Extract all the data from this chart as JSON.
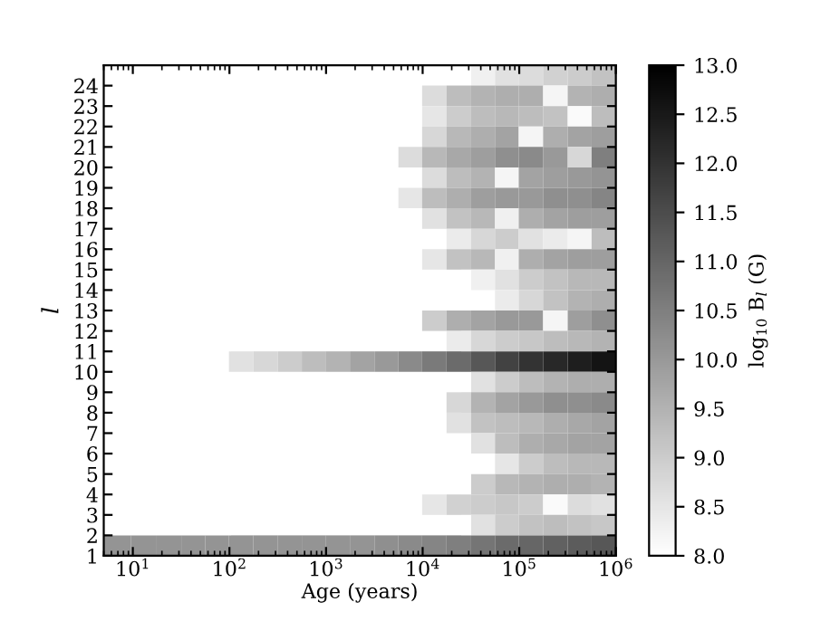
{
  "chart_data": {
    "type": "heatmap",
    "xlabel": "Age (years)",
    "ylabel": "l",
    "clabel": "log$_{10}$ B$_{l}$ (G)",
    "x": [
      7,
      13,
      24,
      42,
      75,
      130,
      240,
      420,
      750,
      1300,
      2400,
      4200,
      7500,
      13000,
      24000,
      42000,
      75000,
      130000,
      240000,
      420000,
      750000
    ],
    "y": [
      24.5,
      23.5,
      22.5,
      21.5,
      20.5,
      19.5,
      18.5,
      17.5,
      16.5,
      15.5,
      14.5,
      13.5,
      12.5,
      11.5,
      10.5,
      9.5,
      8.5,
      7.5,
      6.5,
      5.5,
      4.5,
      3.5,
      2.5,
      1.5
    ],
    "log": "x",
    "xlim": [
      5,
      1000000
    ],
    "xticks": [
      {
        "value": 10,
        "label": "10$^{1}$"
      },
      {
        "value": 100,
        "label": "10$^{2}$"
      },
      {
        "value": 1000,
        "label": "10$^{3}$"
      },
      {
        "value": 10000,
        "label": "10$^{4}$"
      },
      {
        "value": 100000,
        "label": "10$^{5}$"
      },
      {
        "value": 1000000,
        "label": "10$^{6}$"
      }
    ],
    "ylim": [
      1,
      25
    ],
    "yticks": [
      1,
      2,
      3,
      4,
      5,
      6,
      7,
      8,
      9,
      10,
      11,
      12,
      13,
      14,
      15,
      16,
      17,
      18,
      19,
      20,
      21,
      22,
      23,
      24
    ],
    "clim": [
      8,
      13
    ],
    "cticks": [
      {
        "value": 8,
        "label": "8.0"
      },
      {
        "value": 8.5,
        "label": "8.5"
      },
      {
        "value": 9,
        "label": "9.0"
      },
      {
        "value": 9.5,
        "label": "9.5"
      },
      {
        "value": 10,
        "label": "10.0"
      },
      {
        "value": 10.5,
        "label": "10.5"
      },
      {
        "value": 11,
        "label": "11.0"
      },
      {
        "value": 11.5,
        "label": "11.5"
      },
      {
        "value": 12,
        "label": "12.0"
      },
      {
        "value": 12.5,
        "label": "12.5"
      },
      {
        "value": 13,
        "label": "13.0"
      }
    ],
    "cells": [
      [
        null,
        null,
        null,
        null,
        null,
        null,
        null,
        null,
        null,
        null,
        null,
        null,
        null,
        null,
        null,
        8.3,
        8.6,
        8.7,
        8.9,
        9.0,
        9.2
      ],
      [
        null,
        null,
        null,
        null,
        null,
        null,
        null,
        null,
        null,
        null,
        null,
        null,
        null,
        8.7,
        9.3,
        9.5,
        9.6,
        9.6,
        8.2,
        9.5,
        9.6
      ],
      [
        null,
        null,
        null,
        null,
        null,
        null,
        null,
        null,
        null,
        null,
        null,
        null,
        null,
        8.5,
        9.0,
        9.3,
        9.4,
        9.3,
        9.2,
        8.1,
        9.3
      ],
      [
        null,
        null,
        null,
        null,
        null,
        null,
        null,
        null,
        null,
        null,
        null,
        null,
        null,
        8.8,
        9.4,
        9.6,
        9.8,
        8.2,
        9.6,
        9.8,
        9.9
      ],
      [
        null,
        null,
        null,
        null,
        null,
        null,
        null,
        null,
        null,
        null,
        null,
        null,
        8.7,
        9.4,
        9.7,
        9.9,
        10.2,
        10.3,
        10.0,
        8.8,
        10.5
      ],
      [
        null,
        null,
        null,
        null,
        null,
        null,
        null,
        null,
        null,
        null,
        null,
        null,
        null,
        8.7,
        9.3,
        9.5,
        8.2,
        9.8,
        9.9,
        10.0,
        10.1
      ],
      [
        null,
        null,
        null,
        null,
        null,
        null,
        null,
        null,
        null,
        null,
        null,
        null,
        8.5,
        9.3,
        9.6,
        9.9,
        10.0,
        10.0,
        10.2,
        10.2,
        10.4
      ],
      [
        null,
        null,
        null,
        null,
        null,
        null,
        null,
        null,
        null,
        null,
        null,
        null,
        null,
        8.6,
        9.2,
        9.4,
        8.3,
        9.6,
        9.8,
        9.9,
        9.9
      ],
      [
        null,
        null,
        null,
        null,
        null,
        null,
        null,
        null,
        null,
        null,
        null,
        null,
        null,
        null,
        8.4,
        8.8,
        9.0,
        8.6,
        8.4,
        8.2,
        9.3
      ],
      [
        null,
        null,
        null,
        null,
        null,
        null,
        null,
        null,
        null,
        null,
        null,
        null,
        null,
        8.5,
        9.2,
        9.4,
        8.3,
        9.6,
        9.8,
        9.9,
        9.9
      ],
      [
        null,
        null,
        null,
        null,
        null,
        null,
        null,
        null,
        null,
        null,
        null,
        null,
        null,
        null,
        null,
        8.3,
        8.6,
        9.0,
        9.2,
        9.4,
        9.4
      ],
      [
        null,
        null,
        null,
        null,
        null,
        null,
        null,
        null,
        null,
        null,
        null,
        null,
        null,
        null,
        null,
        null,
        8.4,
        8.8,
        9.2,
        9.5,
        9.6
      ],
      [
        null,
        null,
        null,
        null,
        null,
        null,
        null,
        null,
        null,
        null,
        null,
        null,
        null,
        9.0,
        9.6,
        9.8,
        10.0,
        10.0,
        8.2,
        9.9,
        10.2
      ],
      [
        null,
        null,
        null,
        null,
        null,
        null,
        null,
        null,
        null,
        null,
        null,
        null,
        null,
        null,
        8.4,
        8.8,
        9.0,
        9.1,
        9.3,
        9.4,
        9.5
      ],
      [
        null,
        null,
        null,
        null,
        null,
        8.6,
        8.8,
        9.0,
        9.3,
        9.5,
        9.8,
        10.0,
        10.3,
        10.6,
        10.9,
        11.3,
        11.7,
        12.0,
        12.2,
        12.4,
        12.6
      ],
      [
        null,
        null,
        null,
        null,
        null,
        null,
        null,
        null,
        null,
        null,
        null,
        null,
        null,
        null,
        null,
        8.6,
        9.0,
        9.3,
        9.5,
        9.6,
        9.6
      ],
      [
        null,
        null,
        null,
        null,
        null,
        null,
        null,
        null,
        null,
        null,
        null,
        null,
        null,
        null,
        8.8,
        9.5,
        9.8,
        10.0,
        10.2,
        10.2,
        10.3
      ],
      [
        null,
        null,
        null,
        null,
        null,
        null,
        null,
        null,
        null,
        null,
        null,
        null,
        null,
        null,
        8.6,
        9.2,
        9.3,
        9.4,
        9.6,
        9.7,
        9.8
      ],
      [
        null,
        null,
        null,
        null,
        null,
        null,
        null,
        null,
        null,
        null,
        null,
        null,
        null,
        null,
        null,
        8.6,
        9.3,
        9.6,
        9.7,
        9.8,
        9.8
      ],
      [
        null,
        null,
        null,
        null,
        null,
        null,
        null,
        null,
        null,
        null,
        null,
        null,
        null,
        null,
        null,
        null,
        8.5,
        9.0,
        9.3,
        9.4,
        9.4
      ],
      [
        null,
        null,
        null,
        null,
        null,
        null,
        null,
        null,
        null,
        null,
        null,
        null,
        null,
        null,
        null,
        9.0,
        9.4,
        9.5,
        9.6,
        9.6,
        9.5
      ],
      [
        null,
        null,
        null,
        null,
        null,
        null,
        null,
        null,
        null,
        null,
        null,
        null,
        null,
        8.5,
        8.9,
        9.0,
        9.1,
        9.0,
        8.1,
        8.7,
        8.6
      ],
      [
        null,
        null,
        null,
        null,
        null,
        null,
        null,
        null,
        null,
        null,
        null,
        null,
        null,
        null,
        null,
        8.6,
        9.0,
        9.2,
        9.3,
        9.2,
        9.1
      ],
      [
        10.1,
        10.1,
        10.1,
        10.1,
        10.1,
        10.1,
        10.1,
        10.1,
        10.1,
        10.1,
        10.1,
        10.2,
        10.3,
        10.4,
        10.5,
        10.7,
        10.9,
        11.0,
        11.1,
        11.2,
        11.3
      ]
    ]
  }
}
